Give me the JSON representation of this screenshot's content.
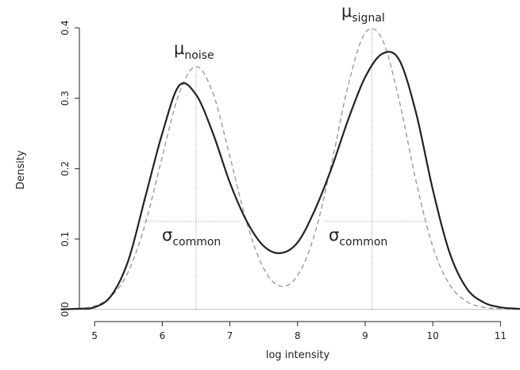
{
  "chart_data": {
    "type": "line",
    "x_label": "log intensity",
    "y_label": "Density",
    "x": [
      4.5,
      4.75,
      5.0,
      5.25,
      5.5,
      5.75,
      6.0,
      6.25,
      6.5,
      6.75,
      7.0,
      7.25,
      7.5,
      7.75,
      8.0,
      8.25,
      8.5,
      8.75,
      9.0,
      9.25,
      9.5,
      9.75,
      10.0,
      10.25,
      10.5,
      10.75,
      11.0,
      11.25,
      11.5
    ],
    "series": [
      {
        "color": "#222222",
        "style": "solid",
        "values": [
          0.0,
          0.001,
          0.003,
          0.02,
          0.07,
          0.16,
          0.25,
          0.318,
          0.305,
          0.25,
          0.18,
          0.125,
          0.09,
          0.08,
          0.095,
          0.14,
          0.2,
          0.27,
          0.33,
          0.363,
          0.355,
          0.28,
          0.17,
          0.08,
          0.03,
          0.01,
          0.003,
          0.001,
          0.0
        ]
      },
      {
        "color": "#9a9a9a",
        "style": "dashed",
        "values": [
          0.0,
          0.001,
          0.005,
          0.019,
          0.054,
          0.122,
          0.217,
          0.307,
          0.345,
          0.307,
          0.217,
          0.123,
          0.058,
          0.033,
          0.048,
          0.106,
          0.206,
          0.319,
          0.393,
          0.384,
          0.298,
          0.183,
          0.089,
          0.035,
          0.011,
          0.003,
          0.001,
          0.0,
          0.0
        ]
      }
    ],
    "xlim": [
      4.54,
      11.23
    ],
    "ylim": [
      -0.006,
      0.417
    ],
    "xticks": [
      5,
      6,
      7,
      8,
      9,
      10,
      11
    ],
    "yticks": [
      {
        "value": 0,
        "label": "0.0"
      },
      0.1,
      0.2,
      0.3,
      0.4
    ],
    "vlines": [
      {
        "x": 6.5,
        "y": 0.345
      },
      {
        "x": 9.1,
        "y": 0.4
      }
    ],
    "hlines": [
      {
        "y": 0.125,
        "x": [
          5.72,
          7.15
        ]
      },
      {
        "y": 0.125,
        "x": [
          8.38,
          9.95
        ]
      }
    ],
    "annotations": [
      {
        "symbol": "μ",
        "subscript": "noise"
      },
      {
        "symbol": "μ",
        "subscript": "signal"
      },
      {
        "symbol": "σ",
        "subscript": "common"
      },
      {
        "symbol": "σ",
        "subscript": "common"
      }
    ]
  }
}
